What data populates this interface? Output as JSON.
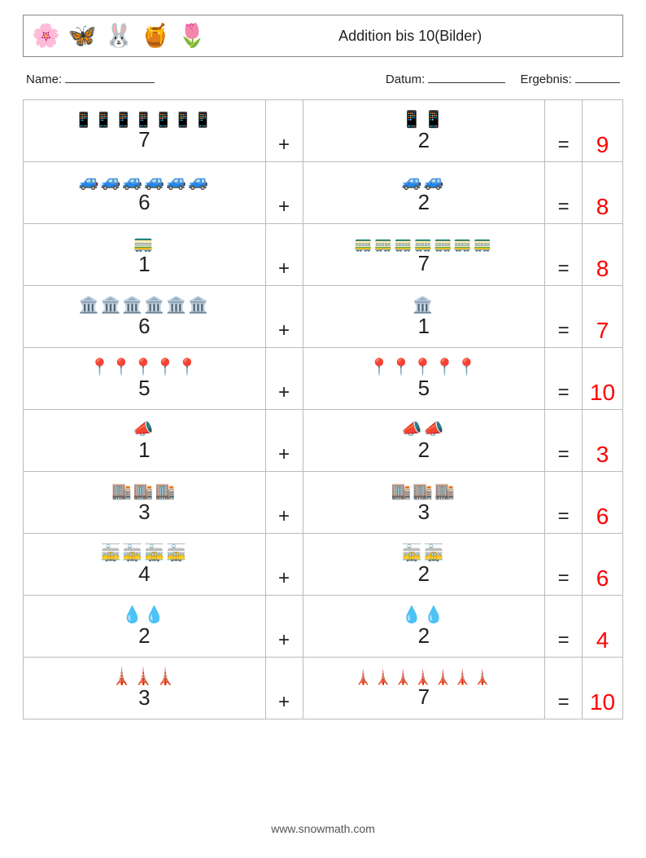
{
  "header": {
    "icons": [
      "🌸",
      "🦋",
      "🐰",
      "🍯",
      "🌷"
    ],
    "title": "Addition bis 10(Bilder)"
  },
  "meta": {
    "name_label": "Name:",
    "date_label": "Datum:",
    "result_label": "Ergebnis:"
  },
  "symbols": {
    "plus": "+",
    "eq": "="
  },
  "colors": {
    "answer": "#ff0000",
    "border": "#bbbbbb",
    "text": "#222222"
  },
  "rows": [
    {
      "icon": "📱",
      "a": 7,
      "b": 2,
      "sum": 9
    },
    {
      "icon": "🚙",
      "a": 6,
      "b": 2,
      "sum": 8
    },
    {
      "icon": "🚃",
      "a": 1,
      "b": 7,
      "sum": 8
    },
    {
      "icon": "🏛️",
      "a": 6,
      "b": 1,
      "sum": 7
    },
    {
      "icon": "📍",
      "a": 5,
      "b": 5,
      "sum": 10
    },
    {
      "icon": "📣",
      "a": 1,
      "b": 2,
      "sum": 3
    },
    {
      "icon": "🏬",
      "a": 3,
      "b": 3,
      "sum": 6
    },
    {
      "icon": "🚋",
      "a": 4,
      "b": 2,
      "sum": 6
    },
    {
      "icon": "💧",
      "a": 2,
      "b": 2,
      "sum": 4
    },
    {
      "icon": "🗼",
      "a": 3,
      "b": 7,
      "sum": 10
    }
  ],
  "footer": "www.snowmath.com"
}
